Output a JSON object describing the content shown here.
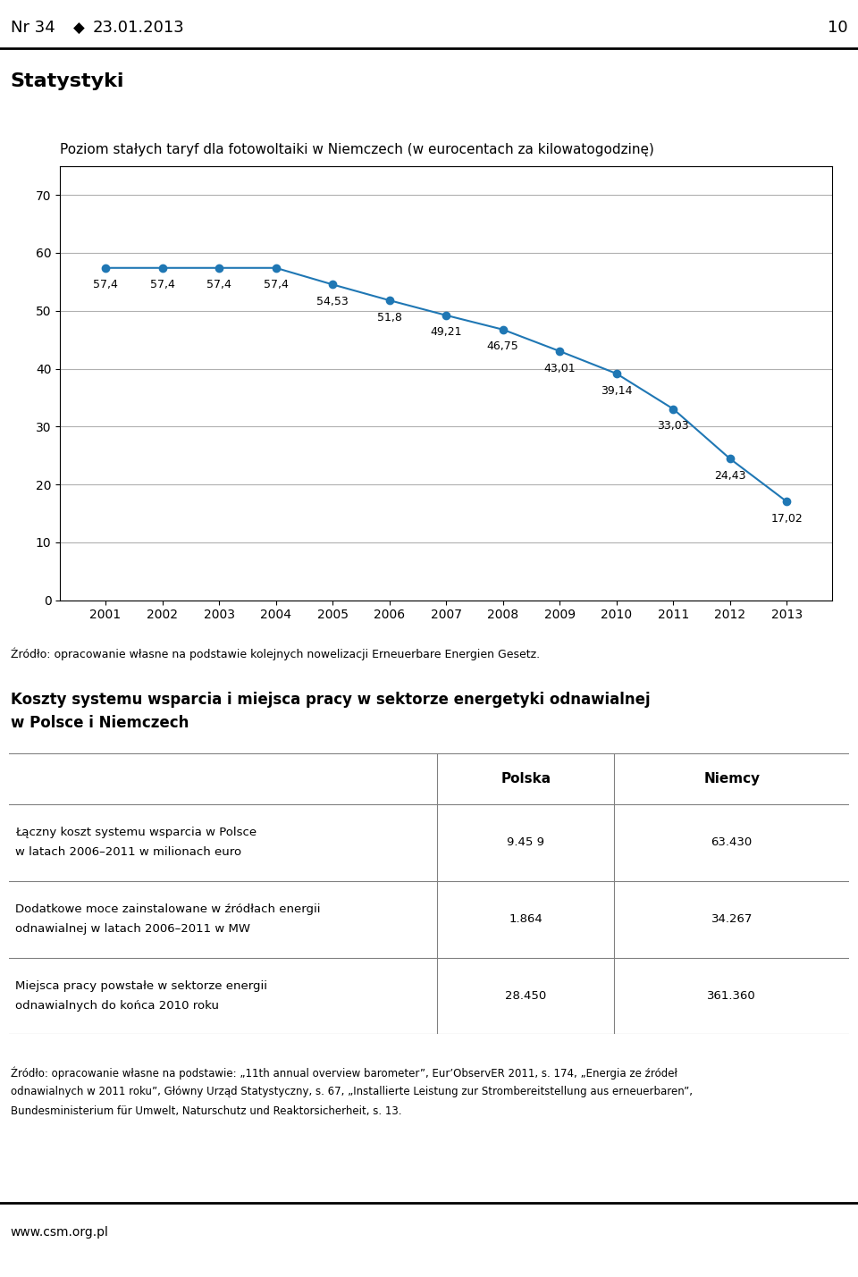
{
  "chart_data": {
    "type": "line",
    "title": "Poziom stałych taryf dla fotowoltaiki w Niemczech (w eurocentach za kilowatogodzinę)",
    "x": [
      2001,
      2002,
      2003,
      2004,
      2005,
      2006,
      2007,
      2008,
      2009,
      2010,
      2011,
      2012,
      2013
    ],
    "values": [
      57.4,
      57.4,
      57.4,
      57.4,
      54.53,
      51.8,
      49.21,
      46.75,
      43.01,
      39.14,
      33.03,
      24.43,
      17.02
    ],
    "value_labels": [
      "57,4",
      "57,4",
      "57,4",
      "57,4",
      "54,53",
      "51,8",
      "49,21",
      "46,75",
      "43,01",
      "39,14",
      "33,03",
      "24,43",
      "17,02"
    ],
    "data_labels": true,
    "marker": "o",
    "xlim": [
      2000.2,
      2013.8
    ],
    "xticks": [
      2001,
      2002,
      2003,
      2004,
      2005,
      2006,
      2007,
      2008,
      2009,
      2010,
      2011,
      2012,
      2013
    ],
    "ylim": [
      0,
      75
    ],
    "yticks": [
      0,
      10,
      20,
      30,
      40,
      50,
      60,
      70
    ],
    "grid": "y",
    "annotations": [
      "Nr 34 ",
      "◆",
      "23.01.2013",
      "10",
      "Statystyki",
      "Źródło: opracowanie własne na podstawie kolejnych nowelizacji Erneuerbare Energien Gesetz.",
      "Źródło: opracowanie własne na podstawie: „11th annual overview barometer”, Eur’ObservER 2011, s. 174, „Energia ze źródeł",
      "odnawialnych w 2011 roku”, Główny Urząd Statystyczny, s. 67, „Installierte Leistung zur Strombereitstellung aus erneuerbaren”,",
      "Bundesministerium für Umwelt, Naturschutz und Reaktorsicherheit, s. 13.",
      "www.csm.org.pl"
    ],
    "table": {
      "title": [
        "Koszty systemu wsparcia i miejsca pracy w sektorze energetyki odnawialnej",
        "w Polsce i Niemczech"
      ],
      "columns": [
        "Polska",
        "Niemcy"
      ],
      "rows": [
        {
          "label": [
            "Łączny koszt systemu wsparcia w Polsce",
            "w latach 2006–2011 w milionach euro"
          ],
          "values": [
            "9.45 9",
            "63.430"
          ]
        },
        {
          "label": [
            "Dodatkowe moce zainstalowane w źródłach energii",
            "odnawialnej w latach 2006–2011 w MW"
          ],
          "values": [
            "1.864",
            "34.267"
          ]
        },
        {
          "label": [
            "Miejsca pracy powstałe w sektorze energii",
            "odnawialnych do końca 2010 roku"
          ],
          "values": [
            "28.450",
            "361.360"
          ]
        }
      ]
    }
  }
}
